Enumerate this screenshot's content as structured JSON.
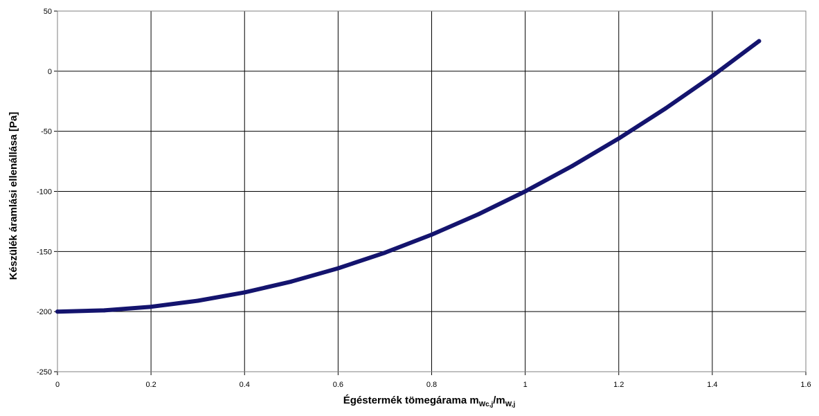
{
  "chart_data": {
    "type": "line",
    "title": "",
    "xlabel": {
      "main": "Égéstermék tömegárama m",
      "sub1": "Wc,j",
      "mid": "/m",
      "sub2": "W,j"
    },
    "ylabel": "Készülék áramlási ellenállása [Pa]",
    "xlim": [
      0,
      1.6
    ],
    "ylim": [
      -250,
      50
    ],
    "xticks": [
      "0",
      "0.2",
      "0.4",
      "0.6",
      "0.8",
      "1",
      "1.2",
      "1.4",
      "1.6"
    ],
    "yticks": [
      "50",
      "0",
      "-50",
      "-100",
      "-150",
      "-200",
      "-250"
    ],
    "grid": true,
    "legend": "none",
    "series": [
      {
        "color": "#14146e",
        "x": [
          0,
          0.1,
          0.2,
          0.3,
          0.4,
          0.5,
          0.6,
          0.7,
          0.8,
          0.9,
          1.0,
          1.1,
          1.2,
          1.3,
          1.4,
          1.5
        ],
        "y": [
          -200,
          -199,
          -196,
          -191,
          -184,
          -175,
          -164,
          -151,
          -136,
          -119,
          -100,
          -79,
          -56,
          -31,
          -4,
          25
        ]
      }
    ]
  }
}
